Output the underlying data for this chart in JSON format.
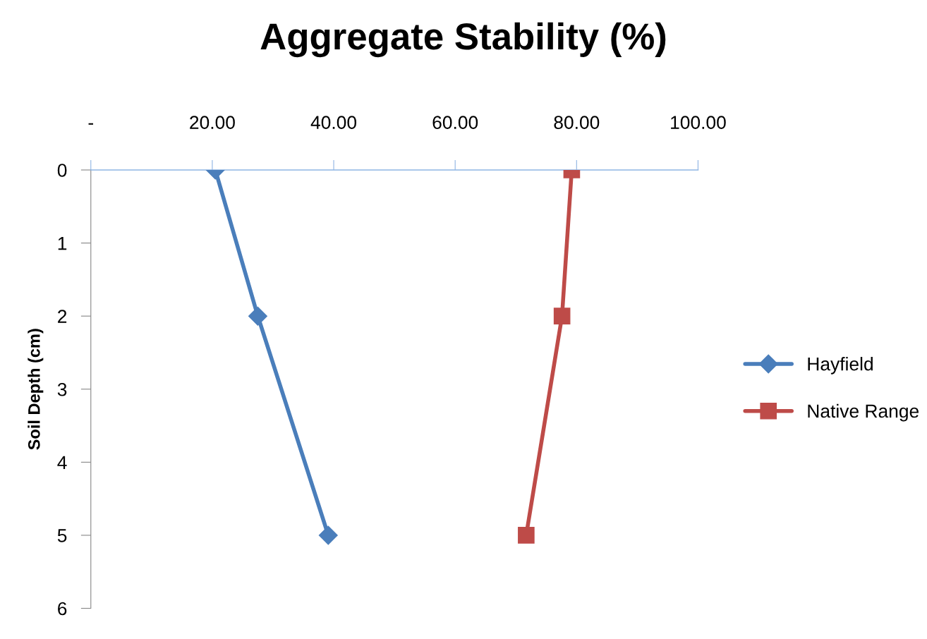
{
  "chart_data": {
    "type": "line",
    "title": "Aggregate Stability (%)",
    "ylabel": "Soil Depth (cm)",
    "xlim": [
      0,
      100
    ],
    "xticks": [
      {
        "value": 0,
        "label": "-"
      },
      {
        "value": 20,
        "label": "20.00"
      },
      {
        "value": 40,
        "label": "40.00"
      },
      {
        "value": 60,
        "label": "60.00"
      },
      {
        "value": 80,
        "label": "80.00"
      },
      {
        "value": 100,
        "label": "100.00"
      }
    ],
    "ylim": [
      6,
      0
    ],
    "yticks": [
      0,
      1,
      2,
      3,
      4,
      5,
      6
    ],
    "legend": "right",
    "grid": false,
    "series": [
      {
        "name": "Hayfield",
        "color": "#4a7ebb",
        "marker": "diamond",
        "x": [
          20.5,
          27.5,
          39.1
        ],
        "values": [
          0,
          2,
          5
        ]
      },
      {
        "name": "Native Range",
        "color": "#be4b48",
        "marker": "square",
        "x": [
          79.2,
          77.6,
          71.7
        ],
        "values": [
          0,
          2,
          5
        ]
      }
    ]
  }
}
